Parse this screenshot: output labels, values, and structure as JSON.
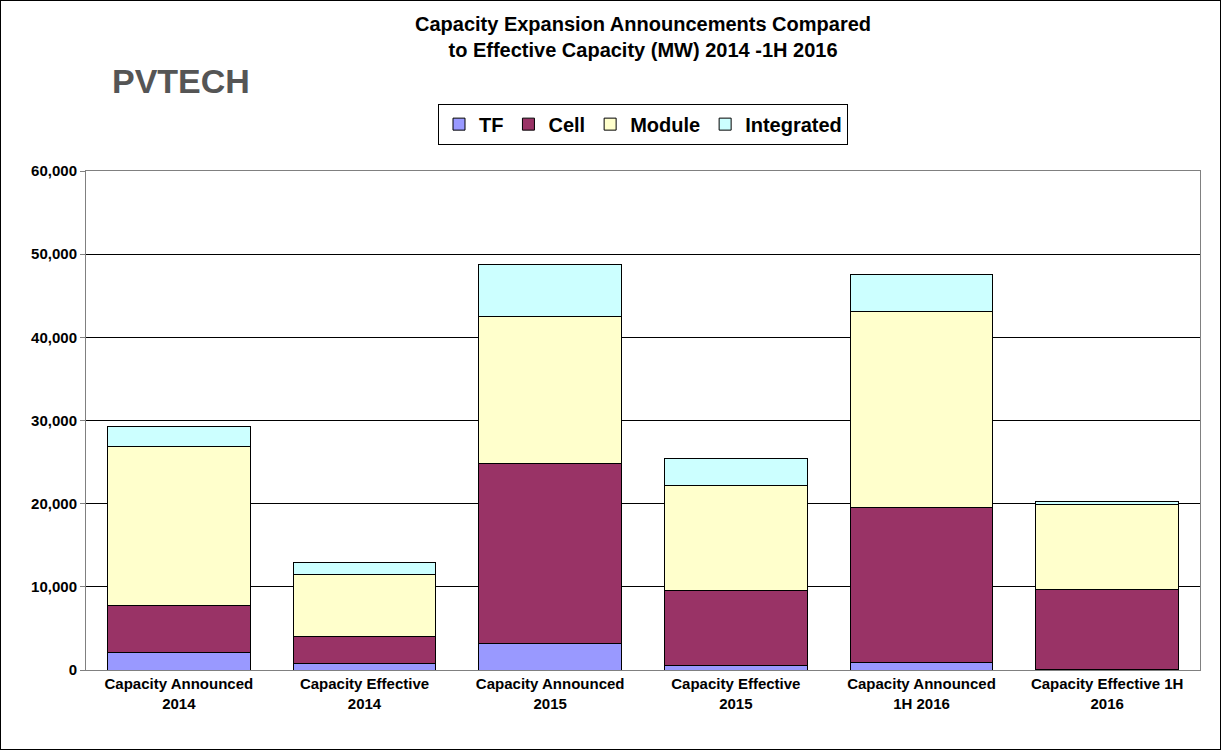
{
  "chart_data": {
    "type": "bar",
    "stacked": true,
    "title": "Capacity Expansion Announcements Compared\nto Effective Capacity (MW) 2014 -1H 2016",
    "annotations": [
      {
        "text": "PVTECH"
      }
    ],
    "categories": [
      "Capacity Announced\n2014",
      "Capacity Effective\n2014",
      "Capacity Announced\n2015",
      "Capacity Effective\n2015",
      "Capacity Announced\n1H 2016",
      "Capacity Effective 1H\n2016"
    ],
    "series": [
      {
        "name": "TF",
        "color": "#9999ff",
        "values": [
          2100,
          800,
          3200,
          500,
          900,
          100
        ]
      },
      {
        "name": "Cell",
        "color": "#993366",
        "values": [
          5700,
          3200,
          21600,
          9100,
          18600,
          9600
        ]
      },
      {
        "name": "Module",
        "color": "#ffffcc",
        "values": [
          19100,
          7500,
          17700,
          12600,
          23600,
          10200
        ]
      },
      {
        "name": "Integrated",
        "color": "#ccffff",
        "values": [
          2400,
          1400,
          6300,
          3200,
          4500,
          400
        ]
      }
    ],
    "ylim": [
      0,
      60000
    ],
    "yticks": [
      0,
      {
        "value": 10000,
        "label": "10,000"
      },
      {
        "value": 20000,
        "label": "20,000"
      },
      {
        "value": 30000,
        "label": "30,000"
      },
      {
        "value": 40000,
        "label": "40,000"
      },
      {
        "value": 50000,
        "label": "50,000"
      },
      {
        "value": 60000,
        "label": "60,000"
      }
    ],
    "grid": true,
    "legend": "top"
  }
}
